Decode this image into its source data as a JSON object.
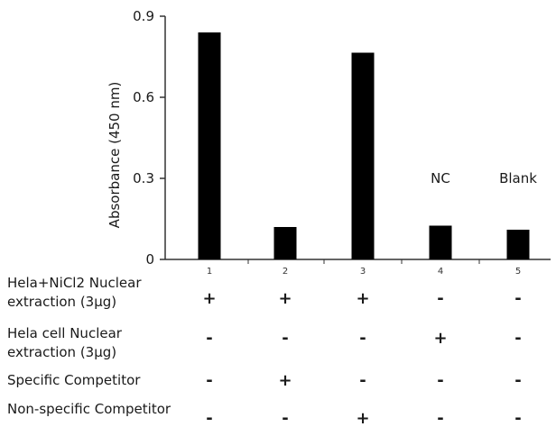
{
  "chart_data": {
    "type": "bar",
    "categories": [
      "1",
      "2",
      "3",
      "4",
      "5"
    ],
    "values": [
      0.84,
      0.12,
      0.765,
      0.125,
      0.11
    ],
    "ylabel": "Absorbance (450 nm)",
    "ylim": [
      0,
      0.9
    ],
    "yticks": [
      {
        "value": 0,
        "label": "0"
      },
      {
        "value": 0.3,
        "label": "0.3"
      },
      {
        "value": 0.6,
        "label": "0.6"
      },
      {
        "value": 0.9,
        "label": "0.9"
      }
    ],
    "annotations": [
      {
        "category": "4",
        "text": "NC"
      },
      {
        "category": "5",
        "text": "Blank"
      }
    ],
    "bar_color": "#000000",
    "grid": false
  },
  "conditions": [
    {
      "label": "Hela+NiCl2 Nuclear extraction (3µg)",
      "signs": [
        "+",
        "+",
        "+",
        "-",
        "-"
      ]
    },
    {
      "label": "Hela cell Nuclear extraction (3µg)",
      "signs": [
        "-",
        "-",
        "-",
        "+",
        "-"
      ]
    },
    {
      "label": "Specific Competitor",
      "signs": [
        "-",
        "+",
        "-",
        "-",
        "-"
      ]
    },
    {
      "label": "Non-specific Competitor",
      "signs": [
        "-",
        "-",
        "+",
        "-",
        "-"
      ]
    }
  ]
}
